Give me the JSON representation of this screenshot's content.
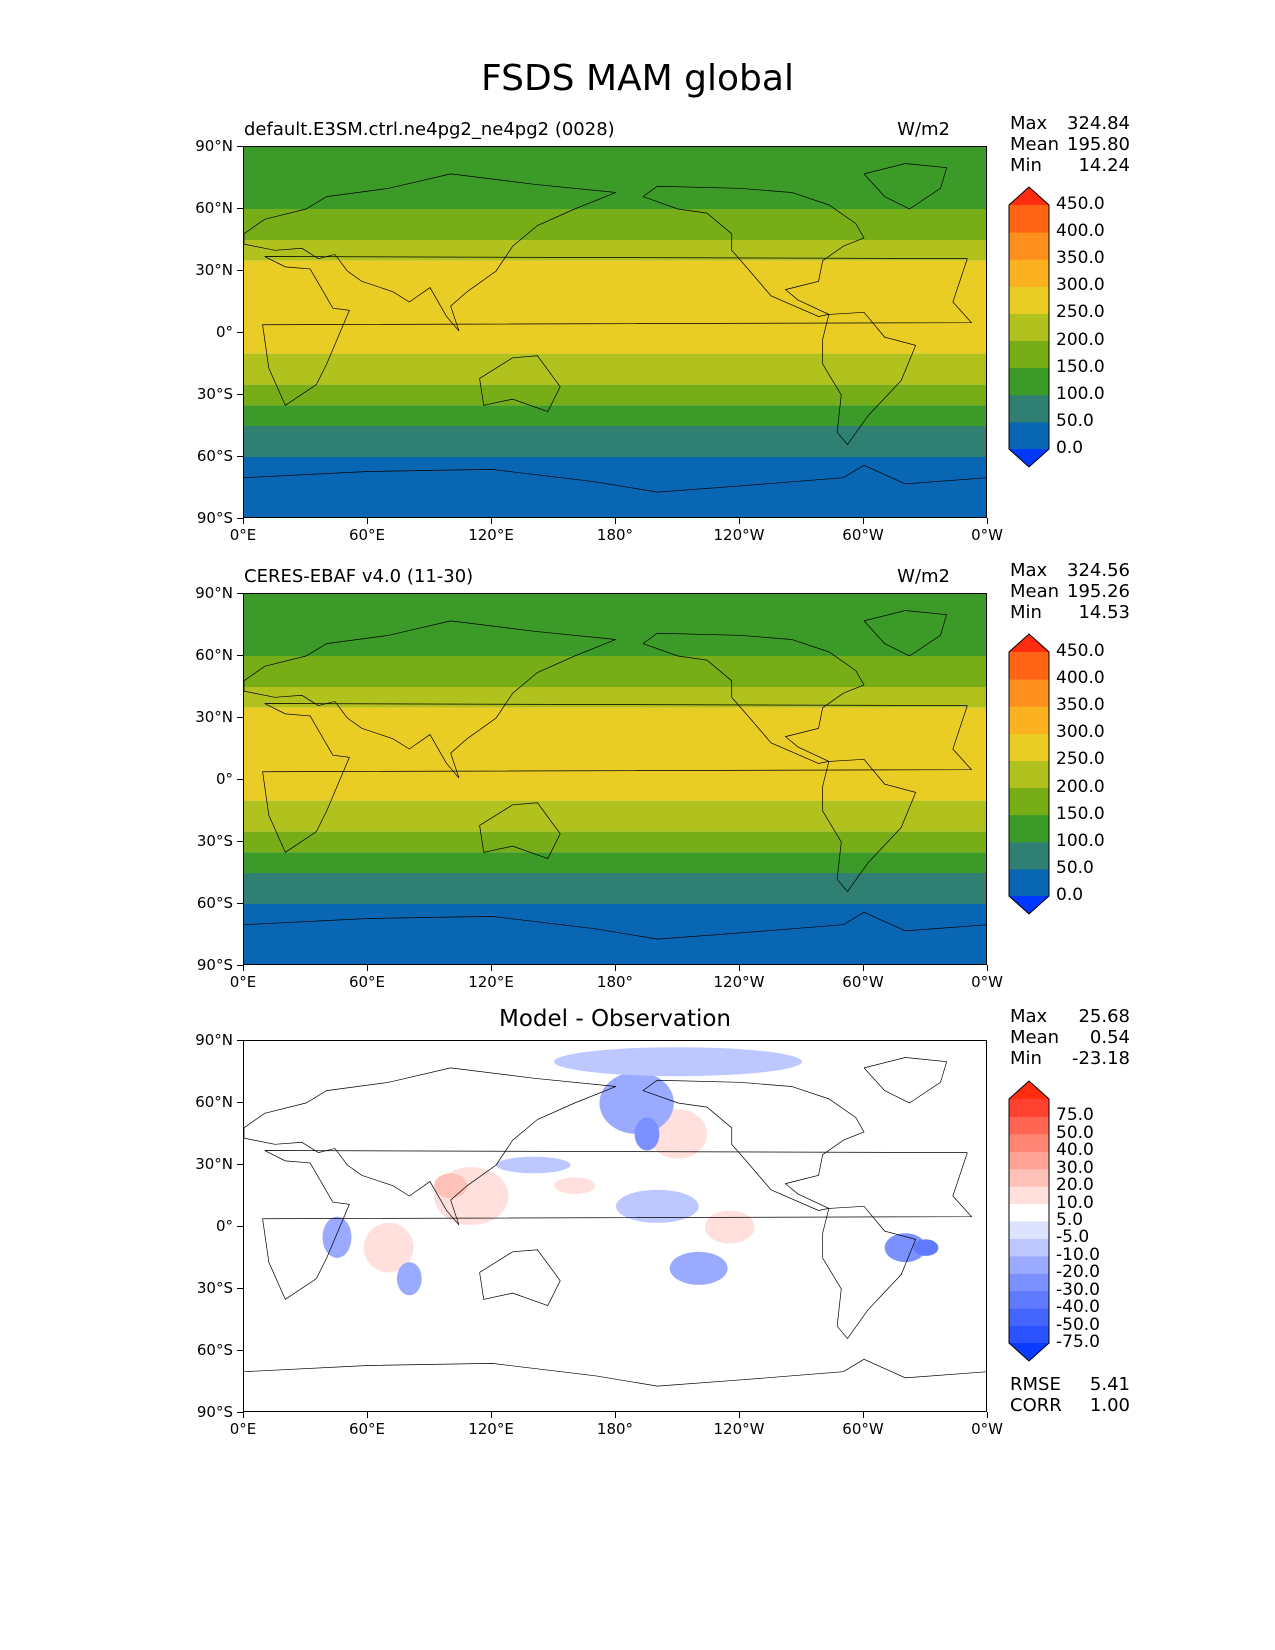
{
  "figure_title": "FSDS MAM global",
  "lat_labels": [
    "90°N",
    "60°N",
    "30°N",
    "0°",
    "30°S",
    "60°S",
    "90°S"
  ],
  "lon_labels": [
    "0°E",
    "60°E",
    "120°E",
    "180°",
    "120°W",
    "60°W",
    "0°W"
  ],
  "chart_data": [
    {
      "type": "heatmap",
      "name": "default.E3SM.ctrl.ne4pg2_ne4pg2 (0028)",
      "units": "W/m2",
      "stats": {
        "max": "324.84",
        "mean": "195.80",
        "min": "14.24"
      },
      "colorbar": {
        "levels": [
          "0.0",
          "50.0",
          "100.0",
          "150.0",
          "200.0",
          "250.0",
          "300.0",
          "350.0",
          "400.0",
          "450.0"
        ],
        "colors": [
          "#0038ff",
          "#0866b3",
          "#2f8072",
          "#3c9a29",
          "#77ae18",
          "#b1c21e",
          "#e9cc24",
          "#fbb120",
          "#ff8f1c",
          "#ff6515",
          "#ff2c0f"
        ]
      },
      "bands_lat_to_level": [
        {
          "lat": [
            60,
            90
          ],
          "level": 3
        },
        {
          "lat": [
            45,
            60
          ],
          "level": 4
        },
        {
          "lat": [
            35,
            45
          ],
          "level": 5
        },
        {
          "lat": [
            -10,
            35
          ],
          "level": 6
        },
        {
          "lat": [
            -25,
            -10
          ],
          "level": 5
        },
        {
          "lat": [
            -35,
            -25
          ],
          "level": 4
        },
        {
          "lat": [
            -45,
            -35
          ],
          "level": 3
        },
        {
          "lat": [
            -60,
            -45
          ],
          "level": 2
        },
        {
          "lat": [
            -90,
            -60
          ],
          "level": 1
        }
      ]
    },
    {
      "type": "heatmap",
      "name": "CERES-EBAF v4.0 (11-30)",
      "units": "W/m2",
      "stats": {
        "max": "324.56",
        "mean": "195.26",
        "min": "14.53"
      },
      "colorbar": {
        "levels": [
          "0.0",
          "50.0",
          "100.0",
          "150.0",
          "200.0",
          "250.0",
          "300.0",
          "350.0",
          "400.0",
          "450.0"
        ],
        "colors": [
          "#0038ff",
          "#0866b3",
          "#2f8072",
          "#3c9a29",
          "#77ae18",
          "#b1c21e",
          "#e9cc24",
          "#fbb120",
          "#ff8f1c",
          "#ff6515",
          "#ff2c0f"
        ]
      },
      "bands_lat_to_level": [
        {
          "lat": [
            60,
            90
          ],
          "level": 3
        },
        {
          "lat": [
            45,
            60
          ],
          "level": 4
        },
        {
          "lat": [
            35,
            45
          ],
          "level": 5
        },
        {
          "lat": [
            -10,
            35
          ],
          "level": 6
        },
        {
          "lat": [
            -25,
            -10
          ],
          "level": 5
        },
        {
          "lat": [
            -35,
            -25
          ],
          "level": 4
        },
        {
          "lat": [
            -45,
            -35
          ],
          "level": 3
        },
        {
          "lat": [
            -60,
            -45
          ],
          "level": 2
        },
        {
          "lat": [
            -90,
            -60
          ],
          "level": 1
        }
      ]
    },
    {
      "type": "heatmap",
      "title": "Model - Observation",
      "stats": {
        "max": "25.68",
        "mean": "0.54",
        "min": "-23.18"
      },
      "metrics": {
        "rmse": "5.41",
        "corr": "1.00"
      },
      "colorbar": {
        "levels": [
          "-75.0",
          "-50.0",
          "-40.0",
          "-30.0",
          "-20.0",
          "-10.0",
          "-5.0",
          "5.0",
          "10.0",
          "20.0",
          "30.0",
          "40.0",
          "50.0",
          "75.0"
        ],
        "colors": [
          "#0a3cff",
          "#2a52ff",
          "#4565ff",
          "#5f7aff",
          "#7a91ff",
          "#9aaaff",
          "#bcc8ff",
          "#dde3ff",
          "#ffffff",
          "#ffe0dc",
          "#ffc2b8",
          "#ffa396",
          "#ff8674",
          "#ff6552",
          "#ff4230",
          "#ff2c0f"
        ]
      },
      "anomalies": [
        {
          "lon": 70,
          "lat": -10,
          "rx": 12,
          "ry": 12,
          "value": 20
        },
        {
          "lon": 110,
          "lat": 15,
          "rx": 18,
          "ry": 14,
          "value": 20
        },
        {
          "lon": 100,
          "lat": 20,
          "rx": 8,
          "ry": 6,
          "value": 30
        },
        {
          "lon": 85,
          "lat": 60,
          "rx": 10,
          "ry": 5,
          "value": 10
        },
        {
          "lon": 160,
          "lat": 20,
          "rx": 10,
          "ry": 4,
          "value": 20
        },
        {
          "lon": 210,
          "lat": 45,
          "rx": 14,
          "ry": 12,
          "value": 20
        },
        {
          "lon": 235,
          "lat": 0,
          "rx": 12,
          "ry": 8,
          "value": 20
        },
        {
          "lon": 20,
          "lat": 60,
          "rx": 12,
          "ry": 5,
          "value": 10
        },
        {
          "lon": 270,
          "lat": 20,
          "rx": 20,
          "ry": 8,
          "value": 10
        },
        {
          "lon": 350,
          "lat": -30,
          "rx": 5,
          "ry": 6,
          "value": 10
        },
        {
          "lon": 10,
          "lat": 20,
          "rx": 8,
          "ry": 8,
          "value": 10
        },
        {
          "lon": 190,
          "lat": 60,
          "rx": 18,
          "ry": 15,
          "value": -10
        },
        {
          "lon": 195,
          "lat": 45,
          "rx": 6,
          "ry": 8,
          "value": -20
        },
        {
          "lon": 210,
          "lat": 80,
          "rx": 60,
          "ry": 7,
          "value": -5
        },
        {
          "lon": 320,
          "lat": -10,
          "rx": 10,
          "ry": 7,
          "value": -20
        },
        {
          "lon": 330,
          "lat": -10,
          "rx": 6,
          "ry": 4,
          "value": -30
        },
        {
          "lon": 45,
          "lat": -5,
          "rx": 7,
          "ry": 10,
          "value": -10
        },
        {
          "lon": 140,
          "lat": 30,
          "rx": 18,
          "ry": 4,
          "value": -5
        },
        {
          "lon": 220,
          "lat": -20,
          "rx": 14,
          "ry": 8,
          "value": -10
        },
        {
          "lon": 80,
          "lat": -25,
          "rx": 6,
          "ry": 8,
          "value": -10
        },
        {
          "lon": 200,
          "lat": 10,
          "rx": 20,
          "ry": 8,
          "value": -5
        }
      ]
    }
  ],
  "labels": {
    "max": "Max",
    "mean": "Mean",
    "min": "Min",
    "rmse": "RMSE",
    "corr": "CORR"
  }
}
